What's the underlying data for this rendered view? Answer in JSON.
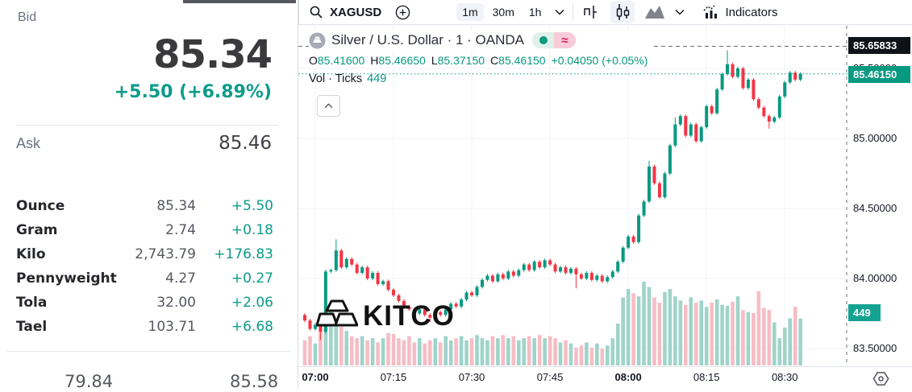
{
  "left_panel": {
    "bid_label": "Bid",
    "bid_price": "85.34",
    "bid_change": "+5.50 (+6.89%)",
    "ask_label": "Ask",
    "ask_price": "85.46",
    "rows": [
      {
        "unit": "Ounce",
        "value": "85.34",
        "change": "+5.50"
      },
      {
        "unit": "Gram",
        "value": "2.74",
        "change": "+0.18"
      },
      {
        "unit": "Kilo",
        "value": "2,743.79",
        "change": "+176.83"
      },
      {
        "unit": "Pennyweight",
        "value": "4.27",
        "change": "+0.27"
      },
      {
        "unit": "Tola",
        "value": "32.00",
        "change": "+2.06"
      },
      {
        "unit": "Tael",
        "value": "103.71",
        "change": "+6.68"
      }
    ],
    "range_low": "79.84",
    "range_high": "85.58"
  },
  "toolbar": {
    "symbol": "XAGUSD",
    "intervals": [
      "1m",
      "30m",
      "1h"
    ],
    "selected_interval": "1m",
    "indicators_label": "Indicators"
  },
  "legend": {
    "title": "Silver / U.S. Dollar · 1 · OANDA",
    "delayed_glyph": "≈",
    "ohlc": [
      {
        "k": "O",
        "v": "85.41600"
      },
      {
        "k": "H",
        "v": "85.46650"
      },
      {
        "k": "L",
        "v": "85.37150"
      },
      {
        "k": "C",
        "v": "85.46150"
      }
    ],
    "change": "+0.04050 (+0.05%)",
    "vol_label": "Vol · Ticks",
    "vol_value": "449"
  },
  "watermark": "KITCO",
  "chart_data": {
    "type": "candlestick+volume",
    "symbol": "XAGUSD",
    "venue": "OANDA",
    "interval_minutes": 1,
    "start_time": "06:58",
    "closes": [
      83.7,
      83.64,
      83.67,
      83.62,
      84.05,
      84.06,
      84.2,
      84.08,
      84.14,
      84.1,
      84.04,
      84.08,
      84.0,
      84.04,
      83.96,
      83.98,
      83.92,
      83.88,
      83.84,
      83.8,
      83.78,
      83.75,
      83.78,
      83.74,
      83.72,
      83.76,
      83.74,
      83.78,
      83.82,
      83.8,
      83.85,
      83.9,
      83.88,
      83.94,
      83.99,
      84.02,
      83.98,
      84.03,
      84.0,
      84.05,
      84.02,
      84.06,
      84.1,
      84.06,
      84.12,
      84.08,
      84.13,
      84.1,
      84.05,
      84.08,
      84.04,
      84.07,
      84.03,
      84.0,
      84.04,
      83.99,
      84.02,
      83.98,
      84.01,
      84.05,
      84.12,
      84.22,
      84.3,
      84.26,
      84.45,
      84.55,
      84.8,
      84.68,
      84.58,
      84.75,
      84.95,
      85.1,
      85.16,
      85.02,
      85.1,
      84.98,
      85.08,
      85.23,
      85.18,
      85.35,
      85.46,
      85.53,
      85.44,
      85.5,
      85.36,
      85.42,
      85.28,
      85.22,
      85.16,
      85.12,
      85.15,
      85.3,
      85.4,
      85.47,
      85.42,
      85.4615
    ],
    "first_open": 83.74,
    "default_wick": 0.012,
    "wick_high_overrides": {
      "6": 84.28,
      "66": 84.84,
      "71": 85.15,
      "81": 85.63
    },
    "wick_low_overrides": {
      "3": 83.56,
      "24": 83.69,
      "52": 83.93,
      "89": 85.07
    },
    "volumes_ticks": [
      240,
      280,
      210,
      330,
      480,
      570,
      450,
      370,
      330,
      280,
      260,
      280,
      240,
      260,
      220,
      260,
      310,
      300,
      260,
      240,
      280,
      220,
      260,
      210,
      240,
      260,
      220,
      280,
      240,
      260,
      280,
      240,
      260,
      290,
      260,
      240,
      280,
      260,
      290,
      260,
      280,
      240,
      260,
      280,
      260,
      290,
      260,
      280,
      260,
      220,
      240,
      210,
      170,
      190,
      220,
      170,
      210,
      160,
      190,
      260,
      400,
      650,
      730,
      690,
      660,
      800,
      750,
      650,
      600,
      700,
      730,
      660,
      620,
      580,
      650,
      600,
      620,
      560,
      600,
      630,
      580,
      570,
      610,
      660,
      530,
      510,
      500,
      710,
      550,
      530,
      410,
      260,
      360,
      450,
      560,
      449
    ],
    "last_price": 85.4615,
    "last_price_label": "85.46150",
    "upper_line": {
      "value": 85.65833,
      "label": "85.65833"
    },
    "volume_axis_label": "449",
    "y_axis_labels": [
      {
        "label": "85.50000",
        "value": 85.5
      },
      {
        "label": "85.00000",
        "value": 85.0
      },
      {
        "label": "84.50000",
        "value": 84.5
      },
      {
        "label": "84.00000",
        "value": 84.0
      },
      {
        "label": "83.50000",
        "value": 83.5
      }
    ],
    "x_ticks": [
      {
        "label": "07:00",
        "index": 2,
        "bold": true
      },
      {
        "label": "07:15",
        "index": 17,
        "bold": false
      },
      {
        "label": "07:30",
        "index": 32,
        "bold": false
      },
      {
        "label": "07:45",
        "index": 47,
        "bold": false
      },
      {
        "label": "08:00",
        "index": 62,
        "bold": true
      },
      {
        "label": "08:15",
        "index": 77,
        "bold": false
      },
      {
        "label": "08:30",
        "index": 92,
        "bold": false
      }
    ],
    "colors": {
      "up": "#089981",
      "down": "#f23645",
      "vol_up": "#9fd4c9",
      "vol_down": "#f6bdc4",
      "grid": "#f0f3fa",
      "session_break": "#9aa0aa",
      "upper_line": "#666a74",
      "last_line": "#089981"
    }
  }
}
